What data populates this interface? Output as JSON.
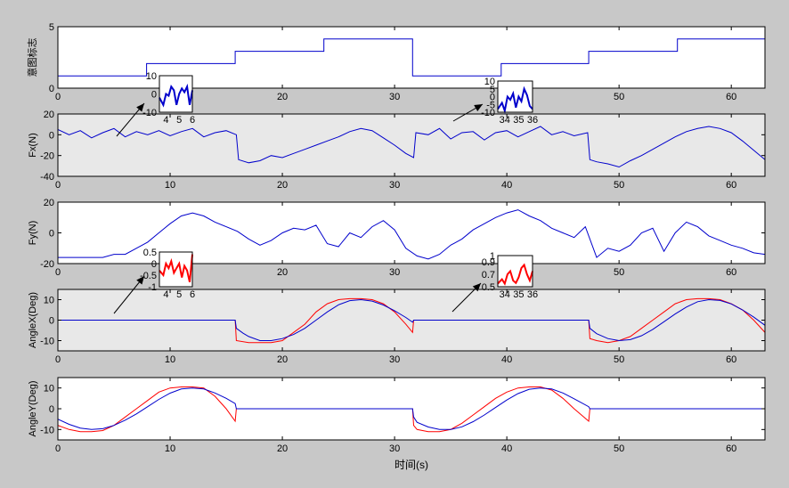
{
  "chart_data": [
    {
      "type": "line",
      "id": "marker",
      "ylabel": "意图标志",
      "xlim": [
        0,
        63
      ],
      "ylim": [
        0,
        5
      ],
      "yticks": [
        0,
        5
      ],
      "xticks": [
        0,
        10,
        20,
        30,
        40,
        50,
        60
      ],
      "background": "#ffffff",
      "series": [
        {
          "color": "#0000cc",
          "step": true,
          "x": [
            0,
            7.9,
            7.9,
            15.8,
            15.8,
            23.7,
            23.7,
            31.6,
            31.6,
            39.5,
            39.5,
            47.3,
            47.3,
            55.2,
            55.2,
            63
          ],
          "y": [
            1,
            1,
            2,
            2,
            3,
            3,
            4,
            4,
            1,
            1,
            2,
            2,
            3,
            3,
            4,
            4
          ]
        }
      ]
    },
    {
      "type": "line",
      "id": "fx",
      "ylabel": "Fx(N)",
      "xlim": [
        0,
        63
      ],
      "ylim": [
        -40,
        20
      ],
      "yticks": [
        -40,
        -20,
        0,
        20
      ],
      "xticks": [
        0,
        10,
        20,
        30,
        40,
        50,
        60
      ],
      "background": "#e8e8e8",
      "series": [
        {
          "color": "#0000cc",
          "x": [
            0,
            1,
            2,
            3,
            4,
            5,
            6,
            7,
            8,
            9,
            10,
            11,
            12,
            13,
            14,
            15,
            15.9,
            16.1,
            17,
            18,
            19,
            20,
            21,
            22,
            23,
            24,
            25,
            26,
            27,
            28,
            29,
            30,
            31,
            31.7,
            31.9,
            33,
            34,
            35,
            36,
            37,
            38,
            39,
            40,
            41,
            42,
            43,
            44,
            45,
            46,
            47.2,
            47.4,
            48,
            49,
            50,
            51,
            52,
            53,
            54,
            55,
            56,
            57,
            58,
            59,
            60,
            61,
            62,
            63
          ],
          "y": [
            5,
            0,
            4,
            -3,
            2,
            6,
            -2,
            3,
            0,
            4,
            -1,
            3,
            6,
            -2,
            2,
            4,
            0,
            -24,
            -27,
            -25,
            -20,
            -22,
            -18,
            -14,
            -10,
            -6,
            -2,
            3,
            6,
            4,
            -3,
            -10,
            -18,
            -22,
            2,
            0,
            6,
            -4,
            2,
            3,
            -5,
            2,
            4,
            -2,
            3,
            8,
            0,
            3,
            -1,
            2,
            -24,
            -26,
            -28,
            -31,
            -25,
            -20,
            -14,
            -8,
            -2,
            3,
            6,
            8,
            6,
            2,
            -6,
            -15,
            -24
          ]
        }
      ]
    },
    {
      "type": "line",
      "id": "fy",
      "ylabel": "Fy(N)",
      "xlim": [
        0,
        63
      ],
      "ylim": [
        -20,
        20
      ],
      "yticks": [
        -20,
        0,
        20
      ],
      "xticks": [
        0,
        10,
        20,
        30,
        40,
        50,
        60
      ],
      "background": "#ffffff",
      "series": [
        {
          "color": "#0000cc",
          "x": [
            0,
            2,
            4,
            5,
            6,
            7,
            8,
            9,
            10,
            11,
            12,
            13,
            14,
            15,
            16,
            17,
            18,
            19,
            20,
            21,
            22,
            23,
            24,
            25,
            26,
            27,
            28,
            29,
            30,
            31,
            32,
            33,
            34,
            35,
            36,
            37,
            38,
            39,
            40,
            41,
            42,
            43,
            44,
            45,
            46,
            47,
            48,
            49,
            50,
            51,
            52,
            53,
            54,
            55,
            56,
            57,
            58,
            59,
            60,
            61,
            62,
            63
          ],
          "y": [
            -16,
            -16,
            -16,
            -14,
            -14,
            -10,
            -6,
            0,
            6,
            11,
            13,
            11,
            7,
            4,
            1,
            -4,
            -8,
            -5,
            0,
            3,
            2,
            5,
            -7,
            -9,
            0,
            -3,
            4,
            8,
            2,
            -10,
            -15,
            -17,
            -14,
            -8,
            -4,
            2,
            6,
            10,
            13,
            15,
            11,
            8,
            3,
            0,
            -3,
            4,
            -16,
            -10,
            -12,
            -8,
            0,
            3,
            -12,
            0,
            7,
            4,
            -2,
            -5,
            -8,
            -10,
            -13,
            -14
          ]
        }
      ]
    },
    {
      "type": "line",
      "id": "anglex",
      "ylabel": "AngleX(Deg)",
      "xlim": [
        0,
        63
      ],
      "ylim": [
        -15,
        15
      ],
      "yticks": [
        -10,
        0,
        10
      ],
      "xticks": [
        0,
        10,
        20,
        30,
        40,
        50,
        60
      ],
      "background": "#e8e8e8",
      "series": [
        {
          "color": "#ff0000",
          "x": [
            0,
            15.8,
            15.9,
            17,
            18,
            19,
            20,
            21,
            22,
            23,
            24,
            25,
            26,
            27,
            28,
            29,
            30,
            31,
            31.6,
            31.7,
            47.3,
            47.4,
            48,
            49,
            50,
            51,
            52,
            53,
            54,
            55,
            56,
            57,
            58,
            59,
            60,
            61,
            62,
            63
          ],
          "y": [
            0,
            0,
            -10,
            -11,
            -11,
            -11,
            -10,
            -6,
            -2,
            4,
            8,
            10,
            10.5,
            10.5,
            10,
            8,
            4,
            -2,
            -6,
            0,
            0,
            -9,
            -10,
            -11,
            -10,
            -8,
            -4,
            0,
            4,
            8,
            10,
            10.5,
            10.5,
            10,
            8,
            5,
            0,
            -6
          ]
        },
        {
          "color": "#0000cc",
          "x": [
            0,
            15.8,
            15.9,
            16.5,
            17,
            18,
            19,
            20,
            21,
            22,
            23,
            24,
            25,
            26,
            27,
            28,
            29,
            30,
            31,
            31.6,
            31.7,
            47.3,
            47.4,
            48,
            49,
            50,
            51,
            52,
            53,
            54,
            55,
            56,
            57,
            58,
            59,
            60,
            61,
            62,
            63
          ],
          "y": [
            0,
            0,
            -4,
            -6.4,
            -8,
            -10,
            -10,
            -9,
            -7,
            -4,
            0,
            4,
            7.5,
            9.5,
            10,
            9.3,
            7.4,
            4.6,
            1.3,
            -1,
            0,
            0,
            -4,
            -6.6,
            -9,
            -10,
            -9.5,
            -7.6,
            -4.5,
            -0.8,
            3,
            6.4,
            9,
            10,
            9.6,
            7.9,
            5,
            1.5,
            -2.5
          ]
        }
      ]
    },
    {
      "type": "line",
      "id": "angley",
      "ylabel": "AngleY(Deg)",
      "xlabel": "时间(s)",
      "xlim": [
        0,
        63
      ],
      "ylim": [
        -15,
        15
      ],
      "yticks": [
        -10,
        0,
        10
      ],
      "xticks": [
        0,
        10,
        20,
        30,
        40,
        50,
        60
      ],
      "background": "#ffffff",
      "series": [
        {
          "color": "#ff0000",
          "x": [
            0,
            1,
            2,
            3,
            4,
            5,
            6,
            7,
            8,
            9,
            10,
            11,
            12,
            13,
            14,
            15,
            15.8,
            15.9,
            31.6,
            31.7,
            32,
            33,
            34,
            35,
            36,
            37,
            38,
            39,
            40,
            41,
            42,
            43,
            44,
            45,
            46,
            47.3,
            47.4,
            63
          ],
          "y": [
            -8,
            -10,
            -11,
            -11,
            -10.5,
            -8,
            -4,
            0,
            4,
            8,
            10,
            10.5,
            10.5,
            10,
            6,
            0,
            -6,
            0,
            0,
            -8,
            -10,
            -11,
            -11,
            -10,
            -7,
            -3,
            1,
            5,
            8,
            10,
            10.5,
            10.5,
            9,
            5,
            0,
            -6,
            0,
            0
          ]
        },
        {
          "color": "#0000cc",
          "x": [
            0,
            1,
            2,
            3,
            4,
            5,
            6,
            7,
            8,
            9,
            10,
            11,
            12,
            13,
            14,
            15,
            15.8,
            15.9,
            31.6,
            31.7,
            32,
            33,
            34,
            35,
            36,
            37,
            38,
            39,
            40,
            41,
            42,
            43,
            44,
            45,
            46,
            47.3,
            47.4,
            63
          ],
          "y": [
            -5,
            -7.5,
            -9.3,
            -10,
            -9.6,
            -8,
            -5.5,
            -2.5,
            1,
            4.5,
            7.5,
            9.5,
            10,
            9.5,
            7.6,
            5,
            2.5,
            0,
            0,
            -4,
            -6.5,
            -8.8,
            -10,
            -10,
            -8.7,
            -6.2,
            -3,
            0.6,
            4.2,
            7.3,
            9.4,
            10,
            9.5,
            7.6,
            4.8,
            1,
            0,
            0
          ]
        }
      ]
    }
  ],
  "insets": [
    {
      "id": "inset-marker-1",
      "xlim": [
        3.5,
        6
      ],
      "ylim": [
        -10,
        10
      ],
      "yticks": [
        -10,
        0,
        10
      ],
      "xticks": [
        4,
        5,
        6
      ],
      "color": "#0000cc",
      "x": [
        3.5,
        3.8,
        4.0,
        4.2,
        4.4,
        4.6,
        4.8,
        5.0,
        5.2,
        5.4,
        5.6,
        5.8,
        6.0
      ],
      "y": [
        -2,
        -6,
        0,
        -1,
        4,
        2,
        -6,
        0,
        3,
        1,
        4,
        -6,
        2
      ]
    },
    {
      "id": "inset-marker-2",
      "xlim": [
        33.5,
        36
      ],
      "ylim": [
        -10,
        10
      ],
      "yticks": [
        -10,
        -5,
        0,
        5,
        10
      ],
      "xticks": [
        34,
        35,
        36
      ],
      "color": "#0000cc",
      "x": [
        33.5,
        33.8,
        34.0,
        34.2,
        34.4,
        34.6,
        34.8,
        35.0,
        35.2,
        35.4,
        35.6,
        35.8,
        36.0
      ],
      "y": [
        -8,
        -4,
        -9,
        0,
        -2,
        2,
        -7,
        0,
        -3,
        5,
        1,
        -6,
        -8
      ]
    },
    {
      "id": "inset-fy-1",
      "xlim": [
        3.5,
        6
      ],
      "ylim": [
        -1,
        0.5
      ],
      "yticks": [
        -1,
        -0.5,
        0,
        0.5
      ],
      "xticks": [
        4,
        5,
        6
      ],
      "color": "#ff0000",
      "x": [
        3.5,
        3.8,
        4.0,
        4.2,
        4.4,
        4.6,
        4.8,
        5.0,
        5.2,
        5.4,
        5.6,
        5.8,
        6.0
      ],
      "y": [
        -0.3,
        -0.5,
        0,
        -0.2,
        0.1,
        -0.4,
        -0.2,
        0,
        -0.6,
        -0.1,
        -0.3,
        -0.8,
        0.4
      ]
    },
    {
      "id": "inset-fy-2",
      "xlim": [
        33.5,
        36
      ],
      "ylim": [
        0.5,
        1
      ],
      "yticks": [
        0.5,
        0.7,
        0.9,
        1
      ],
      "xticks": [
        34,
        35,
        36
      ],
      "color": "#ff0000",
      "x": [
        33.5,
        33.8,
        34.0,
        34.2,
        34.4,
        34.6,
        34.8,
        35.0,
        35.2,
        35.4,
        35.6,
        35.8,
        36.0
      ],
      "y": [
        0.55,
        0.62,
        0.55,
        0.7,
        0.75,
        0.6,
        0.56,
        0.65,
        0.8,
        0.85,
        0.7,
        0.6,
        0.75
      ]
    }
  ]
}
